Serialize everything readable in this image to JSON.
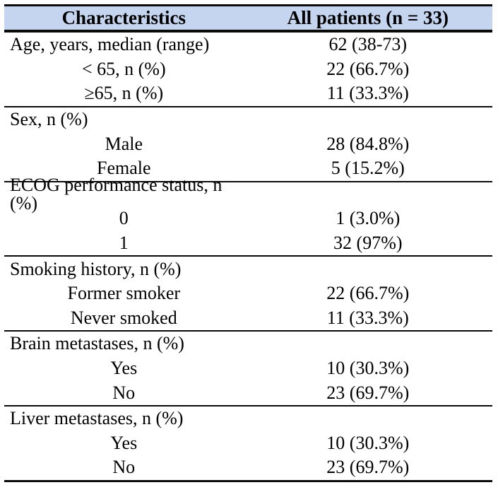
{
  "table": {
    "title_semantic": "Patient baseline characteristics table",
    "header_bg_color": "#c6d5ef",
    "rule_color": "#0a0a0a",
    "header": {
      "col1": "Characteristics",
      "col2": "All patients (n = 33)"
    },
    "sections": [
      {
        "rows": [
          {
            "label": "Age, years, median (range)",
            "value": "62 (38-73)"
          },
          {
            "label": "< 65, n (%)",
            "value": "22 (66.7%)"
          },
          {
            "label": "≥65, n (%)",
            "value": "11 (33.3%)"
          }
        ]
      },
      {
        "rows": [
          {
            "label": "Sex, n (%)",
            "value": ""
          },
          {
            "label": "Male",
            "value": "28 (84.8%)"
          },
          {
            "label": "Female",
            "value": "5 (15.2%)"
          }
        ]
      },
      {
        "rows": [
          {
            "label": "ECOG performance status, n (%)",
            "value": ""
          },
          {
            "label": "0",
            "value": "1 (3.0%)"
          },
          {
            "label": "1",
            "value": "32 (97%)"
          }
        ]
      },
      {
        "rows": [
          {
            "label": "Smoking history, n (%)",
            "value": ""
          },
          {
            "label": "Former smoker",
            "value": "22 (66.7%)"
          },
          {
            "label": "Never smoked",
            "value": "11 (33.3%)"
          }
        ]
      },
      {
        "rows": [
          {
            "label": "Brain metastases, n (%)",
            "value": ""
          },
          {
            "label": "Yes",
            "value": "10 (30.3%)"
          },
          {
            "label": "No",
            "value": "23 (69.7%)"
          }
        ]
      },
      {
        "rows": [
          {
            "label": "Liver metastases, n (%)",
            "value": ""
          },
          {
            "label": "Yes",
            "value": "10 (30.3%)"
          },
          {
            "label": "No",
            "value": "23 (69.7%)"
          }
        ]
      }
    ]
  }
}
